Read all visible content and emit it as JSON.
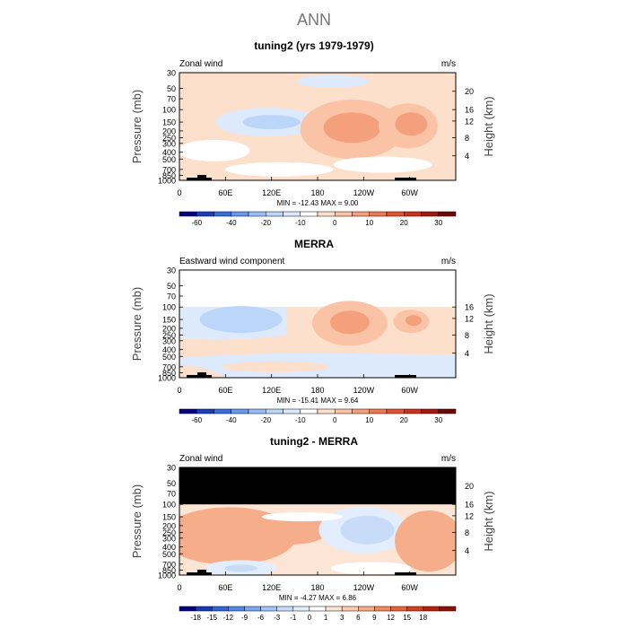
{
  "main_title": "ANN",
  "panels": [
    {
      "title": "tuning2 (yrs 1979-1979)",
      "left_label": "Zonal wind",
      "right_label": "m/s",
      "stats": "MIN =  -12.43   MAX =    9.00",
      "height_ticks": [
        "20",
        "16",
        "12",
        "8",
        "4"
      ]
    },
    {
      "title": "MERRA",
      "left_label": "Eastward wind component",
      "right_label": "m/s",
      "stats": "MIN =  -15.41   MAX =    9.64",
      "height_ticks": [
        "16",
        "12",
        "8",
        "4"
      ]
    },
    {
      "title": "tuning2 - MERRA",
      "left_label": "Zonal wind",
      "right_label": "m/s",
      "stats": "MIN =   -4.27   MAX =    6.86",
      "height_ticks": [
        "20",
        "16",
        "12",
        "8",
        "4"
      ]
    }
  ],
  "axes": {
    "ylabel": "Pressure (mb)",
    "y2label": "Height (km)",
    "pressure_ticks": [
      "30",
      "50",
      "70",
      "100",
      "150",
      "200",
      "250",
      "300",
      "400",
      "500",
      "700",
      "850",
      "1000"
    ],
    "lon_ticks": [
      "0",
      "60E",
      "120E",
      "180",
      "120W",
      "60W"
    ]
  },
  "colorbars": {
    "wind_labels": [
      "-60",
      "-40",
      "-20",
      "-10",
      "0",
      "10",
      "20",
      "30"
    ],
    "diff_labels": [
      "-18",
      "-15",
      "-12",
      "-9",
      "-6",
      "-3",
      "-1",
      "0",
      "1",
      "3",
      "6",
      "9",
      "12",
      "15",
      "18"
    ],
    "wind_colors": [
      "#06027a",
      "#1c3fb7",
      "#3b6fd8",
      "#6a99ea",
      "#98bdf4",
      "#bcd6f9",
      "#dde9fc",
      "#ffffff",
      "#fde0cc",
      "#fac3a5",
      "#f4a07c",
      "#eb7a55",
      "#de5431",
      "#c9321c",
      "#a01a11",
      "#6b0808"
    ],
    "diff_colors": [
      "#06027a",
      "#1a3ab5",
      "#3165d3",
      "#5287e4",
      "#7aa7ef",
      "#a4c4f6",
      "#c8dcfa",
      "#e2edfd",
      "#ffffff",
      "#fde5d6",
      "#fbccb1",
      "#f6ad8a",
      "#ee8a63",
      "#e2653f",
      "#cf4124",
      "#b22314",
      "#8a120b"
    ]
  },
  "chart_data": [
    {
      "type": "heatmap",
      "title": "tuning2 (yrs 1979-1979)",
      "subtitle": "Zonal wind",
      "units": "m/s",
      "xlabel": "",
      "ylabel": "Pressure (mb)",
      "y2label": "Height (km)",
      "x": [
        "0",
        "60E",
        "120E",
        "180",
        "120W",
        "60W"
      ],
      "y_pressure": [
        30,
        50,
        70,
        100,
        150,
        200,
        250,
        300,
        400,
        500,
        700,
        850,
        1000
      ],
      "min": -12.43,
      "max": 9.0,
      "y_reverse_log": true,
      "features": [
        {
          "lon": 120,
          "p": 150,
          "value": -10
        },
        {
          "lon": 220,
          "p": 200,
          "value": 8
        },
        {
          "lon": 295,
          "p": 170,
          "value": 7
        },
        {
          "lon": 100,
          "p": 200,
          "value": -4
        },
        {
          "lon": 200,
          "p": 60,
          "value": -2
        }
      ]
    },
    {
      "type": "heatmap",
      "title": "MERRA",
      "subtitle": "Eastward wind component",
      "units": "m/s",
      "xlabel": "",
      "ylabel": "Pressure (mb)",
      "y2label": "Height (km)",
      "x": [
        "0",
        "60E",
        "120E",
        "180",
        "120W",
        "60W"
      ],
      "y_pressure": [
        30,
        50,
        70,
        100,
        150,
        200,
        250,
        300,
        400,
        500,
        700,
        850,
        1000
      ],
      "min": -15.41,
      "max": 9.64,
      "y_reverse_log": true,
      "features": [
        {
          "lon": 85,
          "p": 150,
          "value": -12
        },
        {
          "lon": 220,
          "p": 170,
          "value": 9
        },
        {
          "lon": 300,
          "p": 160,
          "value": 7
        },
        {
          "lon": 220,
          "p": 600,
          "value": -3
        }
      ]
    },
    {
      "type": "heatmap",
      "title": "tuning2 - MERRA",
      "subtitle": "Zonal wind",
      "units": "m/s",
      "xlabel": "",
      "ylabel": "Pressure (mb)",
      "y2label": "Height (km)",
      "x": [
        "0",
        "60E",
        "120E",
        "180",
        "120W",
        "60W"
      ],
      "y_pressure": [
        30,
        50,
        70,
        100,
        150,
        200,
        250,
        300,
        400,
        500,
        700,
        850,
        1000
      ],
      "min": -4.27,
      "max": 6.86,
      "y_reverse_log": true,
      "features": [
        {
          "lon": 50,
          "p": 300,
          "value": 4
        },
        {
          "lon": 240,
          "p": 250,
          "value": -4
        },
        {
          "lon": 330,
          "p": 350,
          "value": 4
        },
        {
          "lon": 60,
          "p": 800,
          "value": -2
        }
      ]
    }
  ]
}
